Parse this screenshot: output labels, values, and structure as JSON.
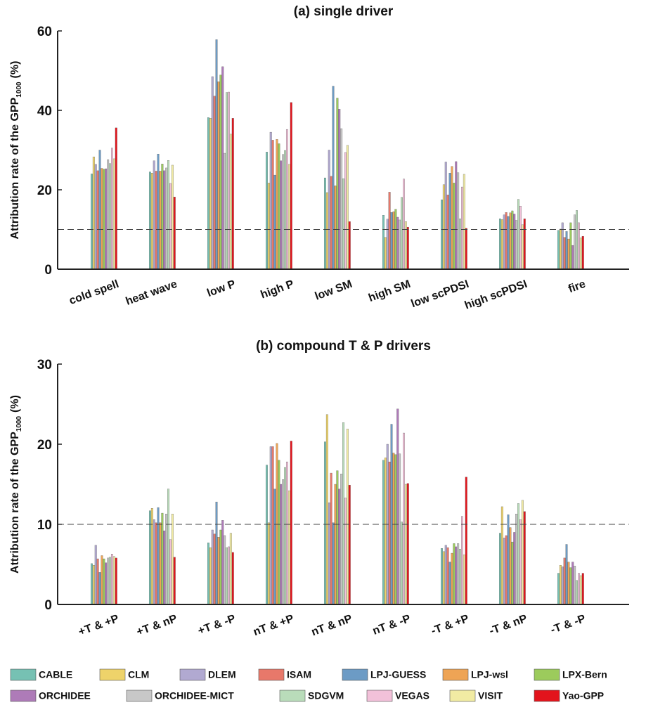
{
  "chart_data": [
    {
      "type": "bar",
      "title": "(a) single driver",
      "y_label": "Attribution rate of the GPP",
      "y_label_sub": "1000",
      "y_label_suffix": "(%)",
      "categories": [
        "cold spell",
        "heat wave",
        "low P",
        "high P",
        "low SM",
        "high SM",
        "low scPDSI",
        "high scPDSI",
        "fire"
      ],
      "ylim": [
        0,
        60
      ],
      "yticks": [
        0,
        20,
        40,
        60
      ],
      "reference_line": 10,
      "series": [
        {
          "color": "#76c1b3",
          "values": [
            24,
            24.5,
            38.2,
            29.5,
            23,
            13.6,
            17.5,
            12.7,
            9.8
          ]
        },
        {
          "color": "#eed36a",
          "values": [
            28.3,
            24.2,
            38,
            21.7,
            19.3,
            8,
            21.3,
            12.5,
            10.1
          ]
        },
        {
          "color": "#b1a9d1",
          "values": [
            26.4,
            27.3,
            48.5,
            34.5,
            30,
            12.6,
            27,
            13.7,
            11.7
          ]
        },
        {
          "color": "#e8786a",
          "values": [
            24.8,
            24.7,
            43.6,
            32.5,
            23.4,
            19.4,
            18.7,
            14.3,
            8
          ]
        },
        {
          "color": "#6c9bc5",
          "values": [
            30,
            29,
            57.8,
            23.7,
            46.1,
            14.3,
            24.2,
            13.3,
            9.5
          ]
        },
        {
          "color": "#eea455",
          "values": [
            25.4,
            24.7,
            47.2,
            32.7,
            21,
            14.5,
            25.9,
            14.2,
            7.6
          ]
        },
        {
          "color": "#9ccb5c",
          "values": [
            25.2,
            26.5,
            48.9,
            31.6,
            43.1,
            15.1,
            21.7,
            14.7,
            11.7
          ]
        },
        {
          "color": "#ae7bb8",
          "values": [
            25.3,
            24.8,
            51,
            27.3,
            40.3,
            13.1,
            27.1,
            13.9,
            6
          ]
        },
        {
          "color": "#c8c8c8",
          "values": [
            27.6,
            25.5,
            29.2,
            28.9,
            35.4,
            12.4,
            24.3,
            12.3,
            13.7
          ]
        },
        {
          "color": "#b9dcba",
          "values": [
            26.6,
            27.4,
            44.5,
            29.9,
            22.8,
            18.1,
            12.7,
            17.6,
            14.8
          ]
        },
        {
          "color": "#f2c1d9",
          "values": [
            30.5,
            21.6,
            44.6,
            35.2,
            29.4,
            22.7,
            20.7,
            15.9,
            11.7
          ]
        },
        {
          "color": "#f1eba3",
          "values": [
            27.8,
            26.2,
            34,
            26.4,
            31.2,
            12,
            23.9,
            11.2,
            7.9
          ]
        },
        {
          "color": "#e3141c",
          "values": [
            35.6,
            18.2,
            38,
            42,
            12,
            10.6,
            10.3,
            12.7,
            8.3
          ]
        }
      ]
    },
    {
      "type": "bar",
      "title": "(b) compound T & P drivers",
      "y_label": "Attribution rate of the GPP",
      "y_label_sub": "1000",
      "y_label_suffix": "(%)",
      "categories": [
        "+T & +P",
        "+T & nP",
        "+T & -P",
        "nT & +P",
        "nT & nP",
        "nT & -P",
        "-T & +P",
        "-T & nP",
        "-T & -P"
      ],
      "ylim": [
        0,
        30
      ],
      "yticks": [
        0,
        10,
        20,
        30
      ],
      "reference_line": 10,
      "series": [
        {
          "name": "CABLE",
          "color": "#76c1b3",
          "values": [
            5.1,
            11.7,
            7.7,
            17.4,
            20.3,
            18,
            7,
            8.9,
            3.9
          ]
        },
        {
          "name": "CLM",
          "color": "#eed36a",
          "values": [
            4.9,
            12,
            7.1,
            10.2,
            23.7,
            18.3,
            6.6,
            12.2,
            4.9
          ]
        },
        {
          "name": "DLEM",
          "color": "#b1a9d1",
          "values": [
            7.4,
            10.6,
            9.3,
            19.7,
            12.7,
            20,
            7.4,
            8.3,
            4.7
          ]
        },
        {
          "name": "ISAM",
          "color": "#e8786a",
          "values": [
            5.7,
            10.2,
            8.8,
            19.7,
            16.4,
            17.8,
            7.1,
            8.6,
            5.8
          ]
        },
        {
          "name": "LPJ-GUESS",
          "color": "#6c9bc5",
          "values": [
            4,
            12.1,
            12.8,
            14.4,
            10.2,
            22.5,
            5.3,
            11.2,
            7.5
          ]
        },
        {
          "name": "LPJ-wsl",
          "color": "#eea455",
          "values": [
            6.1,
            10.2,
            8.4,
            20.1,
            15,
            18.9,
            6.4,
            9.6,
            5.3
          ]
        },
        {
          "name": "LPX-Bern",
          "color": "#9ccb5c",
          "values": [
            5.7,
            11.4,
            9.3,
            18,
            16.7,
            18.7,
            7.6,
            7.8,
            4.6
          ]
        },
        {
          "name": "ORCHIDEE",
          "color": "#ae7bb8",
          "values": [
            5.2,
            9.2,
            10.5,
            15,
            14.4,
            24.4,
            7.2,
            9,
            5.3
          ]
        },
        {
          "name": "ORCHIDEE-MICT",
          "color": "#c8c8c8",
          "values": [
            5.8,
            11.3,
            8.6,
            15.6,
            16.3,
            18.8,
            7.6,
            11.3,
            4.8
          ]
        },
        {
          "name": "SDGVM",
          "color": "#b9dcba",
          "values": [
            5.9,
            14.4,
            7.1,
            17.1,
            22.7,
            10.3,
            6.9,
            12.6,
            3
          ]
        },
        {
          "name": "VEGAS",
          "color": "#f2c1d9",
          "values": [
            6.3,
            8.1,
            7.2,
            17.8,
            13.3,
            21.4,
            11,
            10.6,
            3.9
          ]
        },
        {
          "name": "VISIT",
          "color": "#f1eba3",
          "values": [
            6,
            11.3,
            8.9,
            14.2,
            21.9,
            15,
            6.2,
            13,
            3.6
          ]
        },
        {
          "name": "Yao-GPP",
          "color": "#e3141c",
          "values": [
            5.8,
            5.9,
            6.5,
            20.4,
            14.9,
            15.1,
            15.9,
            11.6,
            3.9
          ]
        }
      ]
    }
  ]
}
